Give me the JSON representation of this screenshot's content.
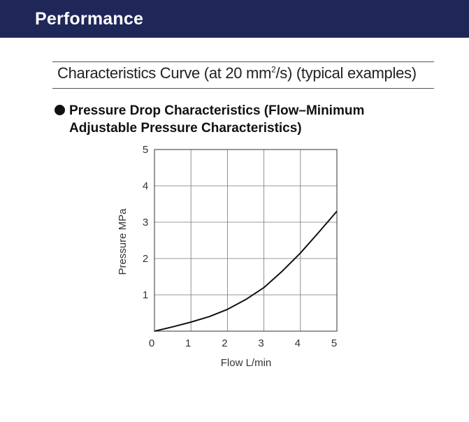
{
  "header": {
    "title": "Performance",
    "bg_color": "#1f2759"
  },
  "section": {
    "title_main": "Characteristics Curve (at 20 mm",
    "title_sup": "2",
    "title_end": "/s) (typical examples)"
  },
  "subtitle": {
    "line1": "Pressure Drop Characteristics (Flow–Minimum",
    "line2": "Adjustable Pressure Characteristics)"
  },
  "chart_data": {
    "type": "line",
    "title": "",
    "xlabel": "Flow   L/min",
    "ylabel": "Pressure   MPa",
    "xlim": [
      0,
      5
    ],
    "ylim": [
      0,
      5
    ],
    "xticks": [
      "0",
      "1",
      "2",
      "3",
      "4",
      "5"
    ],
    "yticks": [
      "1",
      "2",
      "3",
      "4",
      "5"
    ],
    "grid": true,
    "series": [
      {
        "color": "#111111",
        "x": [
          0,
          0.5,
          1,
          1.5,
          2,
          2.5,
          3,
          3.5,
          4,
          4.5,
          5
        ],
        "y": [
          0,
          0.12,
          0.25,
          0.4,
          0.6,
          0.87,
          1.2,
          1.65,
          2.15,
          2.72,
          3.3
        ]
      }
    ]
  }
}
